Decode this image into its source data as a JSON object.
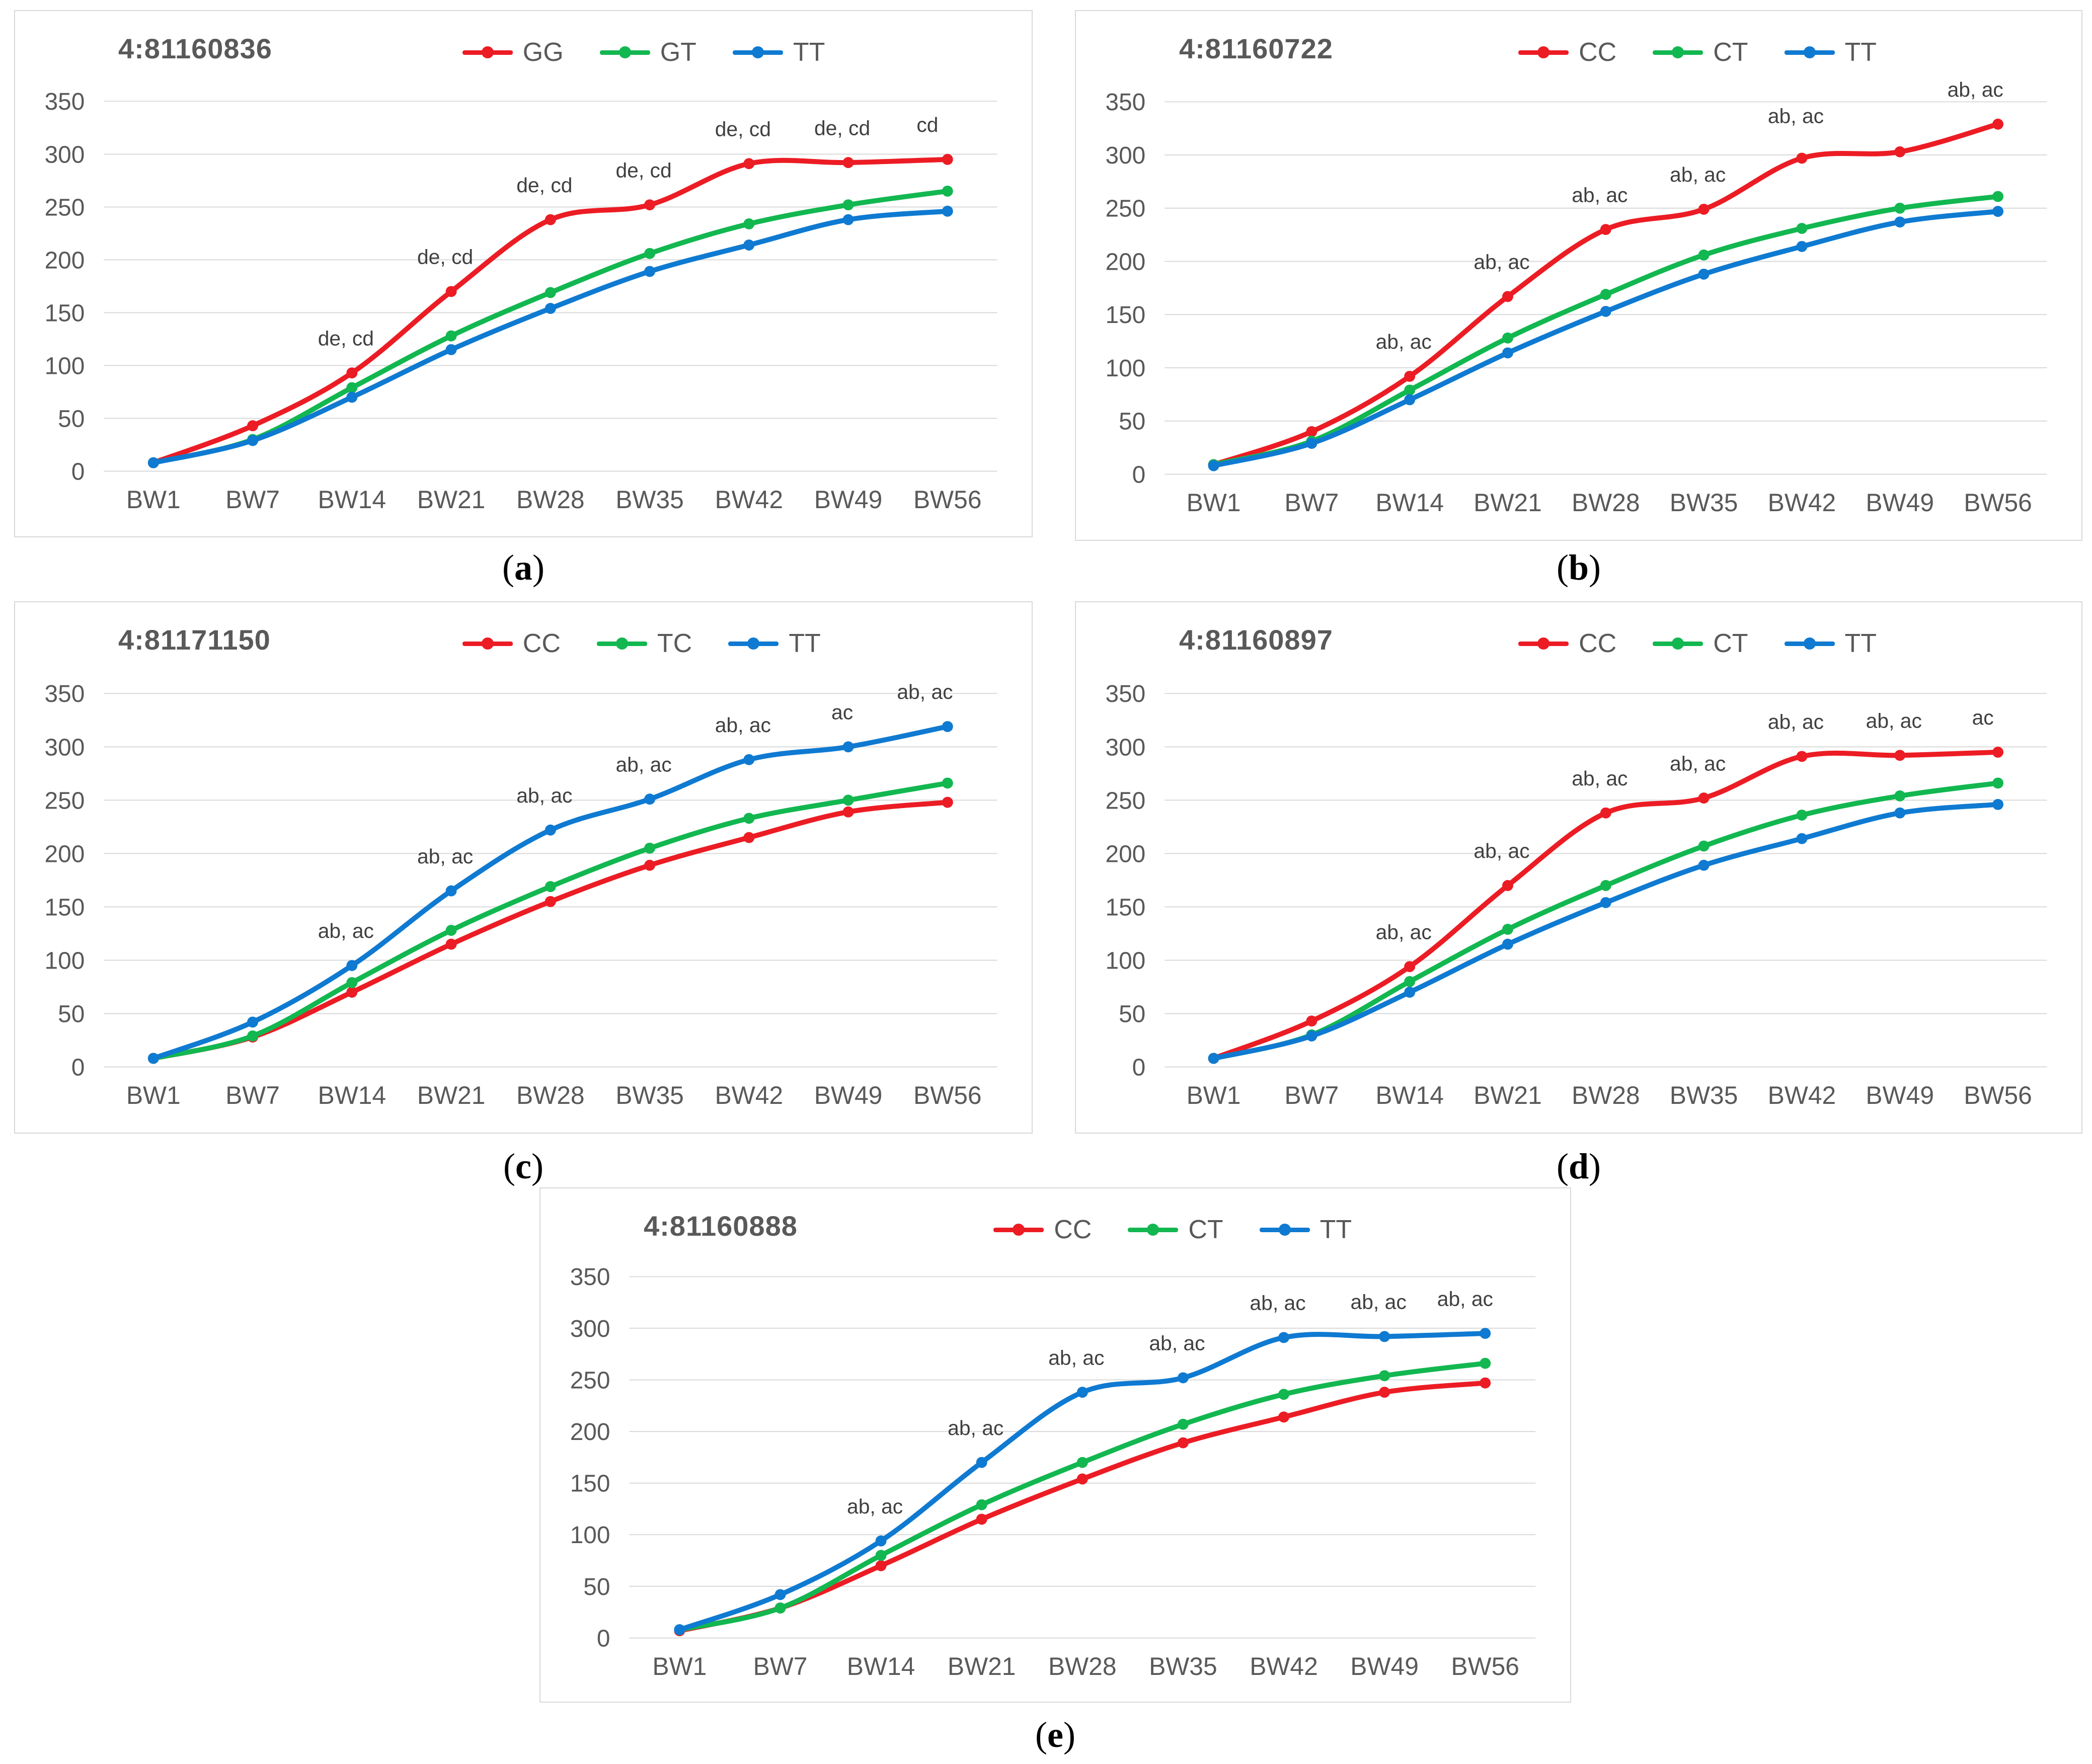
{
  "colors": {
    "red": "#ec1c24",
    "green": "#12b750",
    "blue": "#0f7ad1",
    "gridline": "#d9d9d9",
    "axis_text": "#595959",
    "annotation_text": "#404040",
    "panel_border": "#d9d9d9"
  },
  "chart_data": [
    {
      "id": "a",
      "caption_open": "(",
      "caption_letter": "a",
      "caption_close": ")",
      "title": "4:81160836",
      "type": "line",
      "grid": true,
      "legend_position": "top-right",
      "categories": [
        "BW1",
        "BW7",
        "BW14",
        "BW21",
        "BW28",
        "BW35",
        "BW42",
        "BW49",
        "BW56"
      ],
      "ylim": [
        0,
        350
      ],
      "y_ticks": [
        0,
        50,
        100,
        150,
        200,
        250,
        300,
        350
      ],
      "series": [
        {
          "name": "GG",
          "color_key": "red",
          "values": [
            8,
            43,
            93,
            170,
            238,
            252,
            291,
            292,
            295
          ]
        },
        {
          "name": "GT",
          "color_key": "green",
          "values": [
            8,
            30,
            79,
            128,
            169,
            206,
            234,
            252,
            265
          ]
        },
        {
          "name": "TT",
          "color_key": "blue",
          "values": [
            8,
            29,
            70,
            115,
            154,
            189,
            214,
            238,
            246
          ]
        }
      ],
      "annotations": [
        {
          "category": "BW14",
          "series": "GG",
          "text": "de, cd"
        },
        {
          "category": "BW21",
          "series": "GG",
          "text": "de, cd"
        },
        {
          "category": "BW28",
          "series": "GG",
          "text": "de, cd"
        },
        {
          "category": "BW35",
          "series": "GG",
          "text": "de, cd"
        },
        {
          "category": "BW42",
          "series": "GG",
          "text": "de, cd"
        },
        {
          "category": "BW49",
          "series": "GG",
          "text": "de, cd"
        },
        {
          "category": "BW56",
          "series": "GG",
          "text": "cd",
          "dx": -40
        }
      ]
    },
    {
      "id": "b",
      "caption_open": "(",
      "caption_letter": "b",
      "caption_close": ")",
      "title": "4:81160722",
      "type": "line",
      "grid": true,
      "legend_position": "top-right",
      "categories": [
        "BW1",
        "BW7",
        "BW14",
        "BW21",
        "BW28",
        "BW35",
        "BW42",
        "BW49",
        "BW56"
      ],
      "ylim": [
        0,
        350
      ],
      "y_ticks": [
        0,
        50,
        100,
        150,
        200,
        250,
        300,
        350
      ],
      "series": [
        {
          "name": "CC",
          "color_key": "red",
          "values": [
            9,
            40,
            92,
            167,
            230,
            249,
            297,
            303,
            329
          ]
        },
        {
          "name": "CT",
          "color_key": "green",
          "values": [
            9,
            31,
            79,
            128,
            169,
            206,
            231,
            250,
            261
          ]
        },
        {
          "name": "TT",
          "color_key": "blue",
          "values": [
            8,
            29,
            70,
            114,
            153,
            188,
            214,
            237,
            247
          ]
        }
      ],
      "annotations": [
        {
          "category": "BW14",
          "series": "CC",
          "text": "ab, ac"
        },
        {
          "category": "BW21",
          "series": "CC",
          "text": "ab, ac"
        },
        {
          "category": "BW28",
          "series": "CC",
          "text": "ab, ac"
        },
        {
          "category": "BW35",
          "series": "CC",
          "text": "ab, ac"
        },
        {
          "category": "BW42",
          "series": "CC",
          "text": "ab, ac",
          "dy": 70
        },
        {
          "category": "BW56",
          "series": "CC",
          "text": "ab, ac",
          "dx": -45
        }
      ]
    },
    {
      "id": "c",
      "caption_open": "(",
      "caption_letter": "c",
      "caption_close": ")",
      "title": "4:81171150",
      "type": "line",
      "grid": true,
      "legend_position": "top-right",
      "categories": [
        "BW1",
        "BW7",
        "BW14",
        "BW21",
        "BW28",
        "BW35",
        "BW42",
        "BW49",
        "BW56"
      ],
      "ylim": [
        0,
        350
      ],
      "y_ticks": [
        0,
        50,
        100,
        150,
        200,
        250,
        300,
        350
      ],
      "series": [
        {
          "name": "CC",
          "color_key": "red",
          "values": [
            8,
            28,
            70,
            115,
            155,
            189,
            215,
            239,
            248
          ]
        },
        {
          "name": "TC",
          "color_key": "green",
          "values": [
            8,
            29,
            79,
            128,
            169,
            205,
            233,
            250,
            266
          ]
        },
        {
          "name": "TT",
          "color_key": "blue",
          "values": [
            8,
            42,
            95,
            165,
            222,
            251,
            288,
            300,
            319
          ]
        }
      ],
      "annotations": [
        {
          "category": "BW14",
          "series": "TT",
          "text": "ab, ac"
        },
        {
          "category": "BW21",
          "series": "TT",
          "text": "ab, ac"
        },
        {
          "category": "BW28",
          "series": "TT",
          "text": "ab, ac"
        },
        {
          "category": "BW35",
          "series": "TT",
          "text": "ab, ac"
        },
        {
          "category": "BW42",
          "series": "TT",
          "text": "ab, ac"
        },
        {
          "category": "BW49",
          "series": "TT",
          "text": "ac"
        },
        {
          "category": "BW56",
          "series": "TT",
          "text": "ab, ac",
          "dx": -45
        }
      ]
    },
    {
      "id": "d",
      "caption_open": "(",
      "caption_letter": "d",
      "caption_close": ")",
      "title": "4:81160897",
      "type": "line",
      "grid": true,
      "legend_position": "top-right",
      "categories": [
        "BW1",
        "BW7",
        "BW14",
        "BW21",
        "BW28",
        "BW35",
        "BW42",
        "BW49",
        "BW56"
      ],
      "ylim": [
        0,
        350
      ],
      "y_ticks": [
        0,
        50,
        100,
        150,
        200,
        250,
        300,
        350
      ],
      "series": [
        {
          "name": "CC",
          "color_key": "red",
          "values": [
            8,
            43,
            94,
            170,
            238,
            252,
            291,
            292,
            295
          ]
        },
        {
          "name": "CT",
          "color_key": "green",
          "values": [
            8,
            30,
            80,
            129,
            170,
            207,
            236,
            254,
            266
          ]
        },
        {
          "name": "TT",
          "color_key": "blue",
          "values": [
            8,
            29,
            70,
            115,
            154,
            189,
            214,
            238,
            246
          ]
        }
      ],
      "annotations": [
        {
          "category": "BW14",
          "series": "CC",
          "text": "ab, ac"
        },
        {
          "category": "BW21",
          "series": "CC",
          "text": "ab, ac"
        },
        {
          "category": "BW28",
          "series": "CC",
          "text": "ab, ac"
        },
        {
          "category": "BW35",
          "series": "CC",
          "text": "ab, ac"
        },
        {
          "category": "BW42",
          "series": "CC",
          "text": "ab, ac"
        },
        {
          "category": "BW49",
          "series": "CC",
          "text": "ab, ac"
        },
        {
          "category": "BW56",
          "series": "CC",
          "text": "ac",
          "dx": -30
        }
      ]
    },
    {
      "id": "e",
      "caption_open": "(",
      "caption_letter": "e",
      "caption_close": ")",
      "title": "4:81160888",
      "type": "line",
      "grid": true,
      "legend_position": "top-right",
      "categories": [
        "BW1",
        "BW7",
        "BW14",
        "BW21",
        "BW28",
        "BW35",
        "BW42",
        "BW49",
        "BW56"
      ],
      "ylim": [
        0,
        350
      ],
      "y_ticks": [
        0,
        50,
        100,
        150,
        200,
        250,
        300,
        350
      ],
      "series": [
        {
          "name": "CC",
          "color_key": "red",
          "values": [
            7,
            29,
            70,
            115,
            154,
            189,
            214,
            238,
            247
          ]
        },
        {
          "name": "CT",
          "color_key": "green",
          "values": [
            8,
            29,
            80,
            129,
            170,
            207,
            236,
            254,
            266
          ]
        },
        {
          "name": "TT",
          "color_key": "blue",
          "values": [
            8,
            42,
            94,
            170,
            238,
            252,
            291,
            292,
            295
          ]
        }
      ],
      "annotations": [
        {
          "category": "BW14",
          "series": "TT",
          "text": "ab, ac"
        },
        {
          "category": "BW21",
          "series": "TT",
          "text": "ab, ac"
        },
        {
          "category": "BW28",
          "series": "TT",
          "text": "ab, ac"
        },
        {
          "category": "BW35",
          "series": "TT",
          "text": "ab, ac"
        },
        {
          "category": "BW42",
          "series": "TT",
          "text": "ab, ac"
        },
        {
          "category": "BW49",
          "series": "TT",
          "text": "ab, ac"
        },
        {
          "category": "BW56",
          "series": "TT",
          "text": "ab, ac",
          "dx": -40
        }
      ]
    }
  ]
}
